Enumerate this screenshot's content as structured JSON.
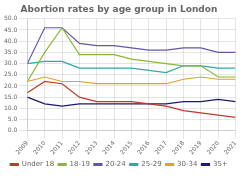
{
  "chart_data": {
    "type": "line",
    "title": "Abortion rates by age group in London",
    "x": [
      2009,
      2010,
      2011,
      2012,
      2013,
      2014,
      2015,
      2016,
      2017,
      2018,
      2019,
      2020,
      2021
    ],
    "xlim": [
      2009,
      2021
    ],
    "xticks": [
      2009,
      2010,
      2011,
      2012,
      2013,
      2014,
      2015,
      2016,
      2017,
      2018,
      2019,
      2020,
      2021
    ],
    "series": [
      {
        "name": "Under 18",
        "color": "#c0392b",
        "values": [
          17,
          22,
          21,
          15,
          13,
          13,
          13,
          12,
          11,
          9,
          8,
          7,
          6
        ]
      },
      {
        "name": "18-19",
        "color": "#8ab833",
        "values": [
          22,
          35,
          46,
          34,
          34,
          34,
          32,
          31,
          30,
          29,
          29,
          24,
          24
        ]
      },
      {
        "name": "20-24",
        "color": "#6655aa",
        "values": [
          30,
          46,
          46,
          39,
          38,
          38,
          37,
          36,
          36,
          37,
          37,
          35,
          35
        ]
      },
      {
        "name": "25-29",
        "color": "#2aaaaa",
        "values": [
          30,
          31,
          31,
          28,
          28,
          28,
          28,
          27,
          26,
          29,
          29,
          28,
          28
        ]
      },
      {
        "name": "30-34",
        "color": "#e8a020",
        "values": [
          22,
          24,
          22,
          22,
          21,
          21,
          21,
          21,
          21,
          23,
          24,
          23,
          23
        ]
      },
      {
        "name": "35+",
        "color": "#1a1a6e",
        "values": [
          15,
          12,
          11,
          12,
          12,
          12,
          12,
          12,
          12,
          13,
          13,
          14,
          13
        ]
      }
    ],
    "ylim": [
      0,
      50
    ],
    "yticks": [
      {
        "value": 0,
        "label": "0.0"
      },
      {
        "value": 5,
        "label": "5.0"
      },
      {
        "value": 10,
        "label": "10.0"
      },
      {
        "value": 15,
        "label": "15.0"
      },
      {
        "value": 20,
        "label": "20.0"
      },
      {
        "value": 25,
        "label": "25.0"
      },
      {
        "value": 30,
        "label": "30.0"
      },
      {
        "value": 35,
        "label": "35.0"
      },
      {
        "value": 40,
        "label": "40.0"
      },
      {
        "value": 45,
        "label": "45.0"
      },
      {
        "value": 50,
        "label": "50.0"
      }
    ],
    "grid": true,
    "legend": "bottom"
  }
}
